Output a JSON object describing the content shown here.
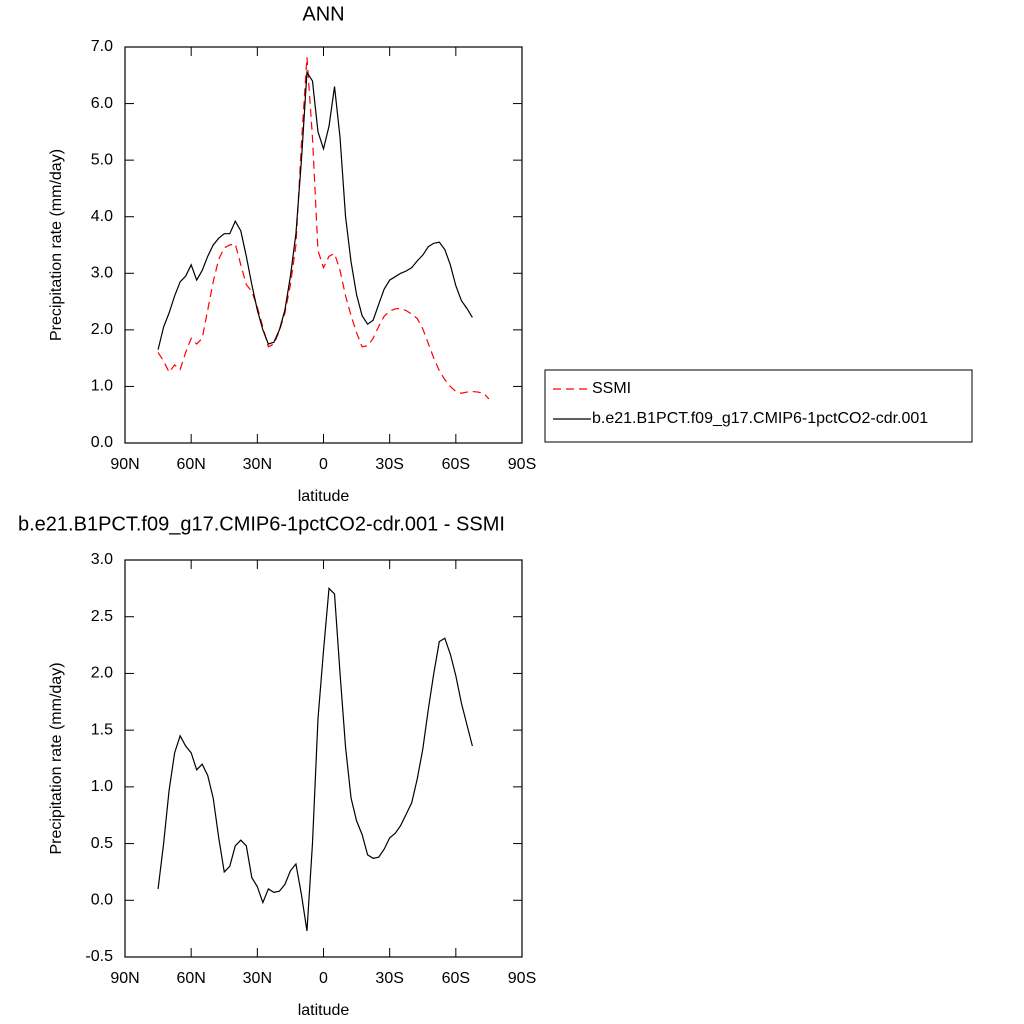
{
  "chart_data": [
    {
      "type": "line",
      "title": "ANN",
      "xlabel": "latitude",
      "ylabel": "Precipitation rate (mm/day)",
      "x": [
        77.5,
        75,
        72.5,
        70,
        67.5,
        65,
        62.5,
        60,
        57.5,
        55,
        52.5,
        50,
        47.5,
        45,
        42.5,
        40,
        37.5,
        35,
        32.5,
        30,
        27.5,
        25,
        22.5,
        20,
        17.5,
        15,
        12.5,
        10,
        7.5,
        5,
        2.5,
        0,
        -2.5,
        -5,
        -7.5,
        -10,
        -12.5,
        -15,
        -17.5,
        -20,
        -22.5,
        -25,
        -27.5,
        -30,
        -32.5,
        -35,
        -37.5,
        -40,
        -42.5,
        -45,
        -47.5,
        -50,
        -52.5,
        -55,
        -57.5,
        -60,
        -62.5,
        -65,
        -67.5,
        -70,
        -72.5,
        -75
      ],
      "series": [
        {
          "name": "SSMI",
          "color": "#ff0000",
          "line_style": "dashed",
          "values": [
            null,
            1.6,
            1.45,
            1.25,
            1.38,
            1.3,
            1.6,
            1.85,
            1.75,
            1.85,
            2.35,
            2.85,
            3.25,
            3.45,
            3.5,
            3.52,
            3.15,
            2.8,
            2.68,
            2.4,
            2.05,
            1.7,
            1.75,
            1.98,
            2.3,
            2.8,
            3.5,
            5.3,
            6.82,
            5.4,
            3.4,
            3.1,
            3.3,
            3.35,
            3.05,
            2.6,
            2.25,
            1.95,
            1.7,
            1.72,
            1.85,
            2.06,
            2.24,
            2.33,
            2.37,
            2.38,
            2.34,
            2.28,
            2.2,
            2.02,
            1.76,
            1.5,
            1.28,
            1.12,
            1.0,
            0.91,
            0.88,
            0.9,
            0.91,
            0.9,
            0.88,
            0.78
          ]
        },
        {
          "name": "b.e21.B1PCT.f09_g17.CMIP6-1pctCO2-cdr.001",
          "color": "#000000",
          "line_style": "solid",
          "values": [
            null,
            1.65,
            2.05,
            2.3,
            2.6,
            2.85,
            2.95,
            3.15,
            2.88,
            3.05,
            3.3,
            3.5,
            3.62,
            3.7,
            3.7,
            3.92,
            3.75,
            3.3,
            2.8,
            2.35,
            2.0,
            1.75,
            1.78,
            2.0,
            2.35,
            2.95,
            3.7,
            5.0,
            6.55,
            6.4,
            5.5,
            5.2,
            5.6,
            6.3,
            5.4,
            4.0,
            3.2,
            2.62,
            2.25,
            2.1,
            2.17,
            2.45,
            2.72,
            2.88,
            2.94,
            3.0,
            3.04,
            3.1,
            3.22,
            3.32,
            3.47,
            3.53,
            3.55,
            3.42,
            3.15,
            2.78,
            2.52,
            2.38,
            2.22,
            null,
            null,
            null
          ]
        }
      ],
      "xlim": [
        90,
        -90
      ],
      "xticks": [
        {
          "value": 90,
          "label": "90N"
        },
        {
          "value": 60,
          "label": "60N"
        },
        {
          "value": 30,
          "label": "30N"
        },
        0,
        {
          "value": -30,
          "label": "30S"
        },
        {
          "value": -60,
          "label": "60S"
        },
        {
          "value": -90,
          "label": "90S"
        }
      ],
      "ylim": [
        0,
        7
      ],
      "yticks": [
        {
          "value": 0,
          "label": "0.0"
        },
        {
          "value": 1,
          "label": "1.0"
        },
        {
          "value": 2,
          "label": "2.0"
        },
        {
          "value": 3,
          "label": "3.0"
        },
        {
          "value": 4,
          "label": "4.0"
        },
        {
          "value": 5,
          "label": "5.0"
        },
        {
          "value": 6,
          "label": "6.0"
        },
        {
          "value": 7,
          "label": "7.0"
        }
      ],
      "legend": "right"
    },
    {
      "type": "line",
      "title": "b.e21.B1PCT.f09_g17.CMIP6-1pctCO2-cdr.001 - SSMI",
      "xlabel": "latitude",
      "ylabel": "Precipitation rate (mm/day)",
      "x": [
        77.5,
        75,
        72.5,
        70,
        67.5,
        65,
        62.5,
        60,
        57.5,
        55,
        52.5,
        50,
        47.5,
        45,
        42.5,
        40,
        37.5,
        35,
        32.5,
        30,
        27.5,
        25,
        22.5,
        20,
        17.5,
        15,
        12.5,
        10,
        7.5,
        5,
        2.5,
        0,
        -2.5,
        -5,
        -7.5,
        -10,
        -12.5,
        -15,
        -17.5,
        -20,
        -22.5,
        -25,
        -27.5,
        -30,
        -32.5,
        -35,
        -37.5,
        -40,
        -42.5,
        -45,
        -47.5,
        -50,
        -52.5,
        -55,
        -57.5,
        -60,
        -62.5,
        -65,
        -67.5,
        -70,
        -72.5,
        -75
      ],
      "color": "#000000",
      "values": [
        null,
        0.1,
        0.5,
        0.97,
        1.3,
        1.45,
        1.36,
        1.3,
        1.15,
        1.2,
        1.1,
        0.9,
        0.55,
        0.25,
        0.3,
        0.48,
        0.53,
        0.48,
        0.2,
        0.12,
        -0.02,
        0.1,
        0.07,
        0.08,
        0.14,
        0.26,
        0.32,
        0.05,
        -0.27,
        0.5,
        1.6,
        2.2,
        2.75,
        2.7,
        2.0,
        1.35,
        0.9,
        0.7,
        0.58,
        0.4,
        0.37,
        0.38,
        0.45,
        0.55,
        0.59,
        0.66,
        0.76,
        0.86,
        1.07,
        1.33,
        1.68,
        2.0,
        2.28,
        2.31,
        2.17,
        1.98,
        1.74,
        1.55,
        1.36,
        null,
        null,
        null
      ],
      "xlim": [
        90,
        -90
      ],
      "xticks": [
        {
          "value": 90,
          "label": "90N"
        },
        {
          "value": 60,
          "label": "60N"
        },
        {
          "value": 30,
          "label": "30N"
        },
        0,
        {
          "value": -30,
          "label": "30S"
        },
        {
          "value": -60,
          "label": "60S"
        },
        {
          "value": -90,
          "label": "90S"
        }
      ],
      "ylim": [
        -0.5,
        3
      ],
      "yticks": [
        -0.5,
        {
          "value": 0,
          "label": "0.0"
        },
        0.5,
        {
          "value": 1,
          "label": "1.0"
        },
        1.5,
        {
          "value": 2,
          "label": "2.0"
        },
        2.5,
        {
          "value": 3,
          "label": "3.0"
        }
      ]
    }
  ]
}
